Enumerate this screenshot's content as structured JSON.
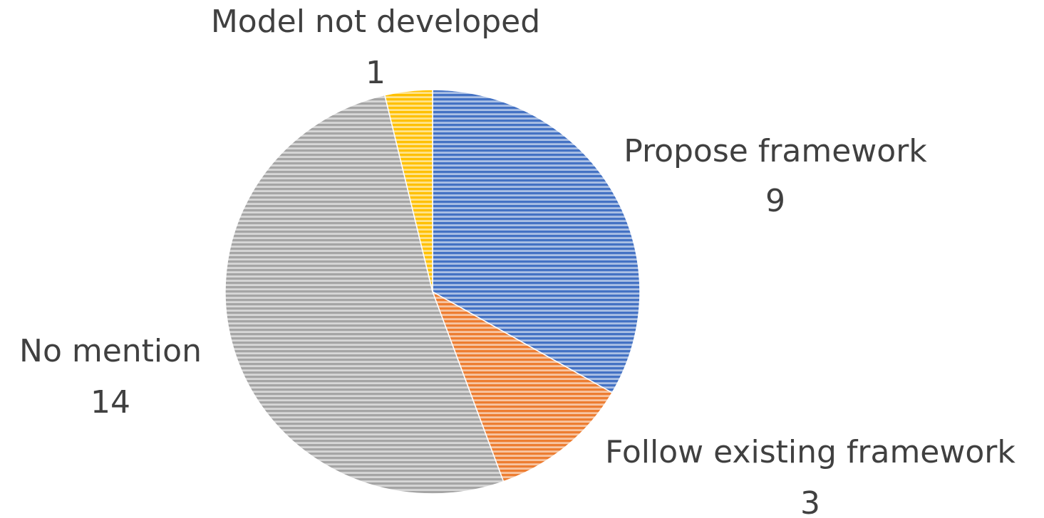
{
  "chart_data": {
    "type": "pie",
    "start_angle_deg": 0,
    "direction": "clockwise",
    "slices": [
      {
        "label": "Propose framework",
        "value": 9,
        "color": "#4472C4"
      },
      {
        "label": "Follow existing framework",
        "value": 3,
        "color": "#ED7D31"
      },
      {
        "label": "No mention",
        "value": 14,
        "color": "#A5A5A5"
      },
      {
        "label": "Model not developed",
        "value": 1,
        "color": "#FFC000"
      }
    ],
    "fill_pattern": "horizontal-stripes",
    "legend": "none",
    "data_labels": "category-name-and-value"
  }
}
